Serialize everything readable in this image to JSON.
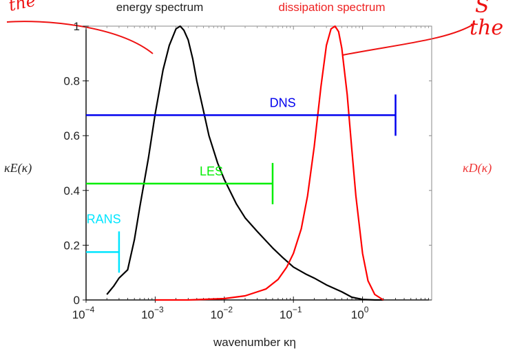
{
  "chart_data": {
    "type": "line",
    "title_left": "energy spectrum",
    "title_right": "dissipation spectrum",
    "xlabel": "wavenumber κη",
    "ylabel_left": "κE(κ)",
    "ylabel_right": "κD(κ)",
    "x_scale": "log",
    "xlim": [
      0.0001,
      10
    ],
    "ylim": [
      0,
      1
    ],
    "x_ticks": [
      {
        "value": 0.0001,
        "base": "10",
        "exp": "−4"
      },
      {
        "value": 0.001,
        "base": "10",
        "exp": "−3"
      },
      {
        "value": 0.01,
        "base": "10",
        "exp": "−2"
      },
      {
        "value": 0.1,
        "base": "10",
        "exp": "−1"
      },
      {
        "value": 1,
        "base": "10",
        "exp": "0"
      }
    ],
    "y_ticks": [
      {
        "value": 0,
        "label": "0"
      },
      {
        "value": 0.2,
        "label": "0.2"
      },
      {
        "value": 0.4,
        "label": "0.4"
      },
      {
        "value": 0.6,
        "label": "0.6"
      },
      {
        "value": 0.8,
        "label": "0.8"
      },
      {
        "value": 1,
        "label": "1"
      }
    ],
    "grid": false,
    "colors": {
      "energy": "#000000",
      "dissipation": "#ff0000",
      "dns": "#0000ee",
      "les": "#00ee00",
      "rans": "#00e5ff",
      "annotation": "#ee1111"
    },
    "series": [
      {
        "key": "energy",
        "x": [
          0.0002,
          0.00025,
          0.0003,
          0.0004,
          0.0005,
          0.0006,
          0.0008,
          0.001,
          0.0013,
          0.0016,
          0.002,
          0.0023,
          0.0026,
          0.003,
          0.0035,
          0.004,
          0.005,
          0.006,
          0.008,
          0.01,
          0.015,
          0.02,
          0.03,
          0.05,
          0.07,
          0.1,
          0.15,
          0.2,
          0.3,
          0.5,
          0.7,
          1.0,
          1.5,
          2.0
        ],
        "y": [
          0.02,
          0.05,
          0.08,
          0.11,
          0.22,
          0.34,
          0.52,
          0.68,
          0.84,
          0.93,
          0.99,
          1.0,
          0.985,
          0.95,
          0.88,
          0.8,
          0.69,
          0.6,
          0.5,
          0.44,
          0.35,
          0.3,
          0.25,
          0.19,
          0.155,
          0.12,
          0.095,
          0.08,
          0.055,
          0.03,
          0.01,
          0.002,
          0.0,
          0.0
        ]
      },
      {
        "key": "dissipation",
        "x": [
          0.001,
          0.003,
          0.01,
          0.02,
          0.04,
          0.06,
          0.08,
          0.1,
          0.13,
          0.16,
          0.2,
          0.25,
          0.3,
          0.35,
          0.4,
          0.45,
          0.5,
          0.6,
          0.7,
          0.8,
          1.0,
          1.2,
          1.5,
          2.0
        ],
        "y": [
          0.0,
          0.0,
          0.005,
          0.015,
          0.04,
          0.075,
          0.12,
          0.17,
          0.26,
          0.38,
          0.56,
          0.78,
          0.93,
          0.99,
          1.0,
          0.98,
          0.92,
          0.75,
          0.55,
          0.38,
          0.17,
          0.07,
          0.02,
          0.0
        ]
      }
    ],
    "ranges": [
      {
        "key": "dns",
        "label": "DNS",
        "x_start": 0.0001,
        "x_end": 3.0,
        "y": 0.675,
        "label_x": 0.07,
        "label_y": 0.705
      },
      {
        "key": "les",
        "label": "LES",
        "x_start": 0.0001,
        "x_end": 0.05,
        "y": 0.425,
        "label_x": 0.0065,
        "label_y": 0.455
      },
      {
        "key": "rans",
        "label": "RANS",
        "x_start": 0.0001,
        "x_end": 0.0003,
        "y": 0.175,
        "label_x": 0.00018,
        "label_y": 0.28
      }
    ],
    "handwriting": {
      "left": "the",
      "right_top": "S",
      "right_bottom": "the"
    }
  }
}
